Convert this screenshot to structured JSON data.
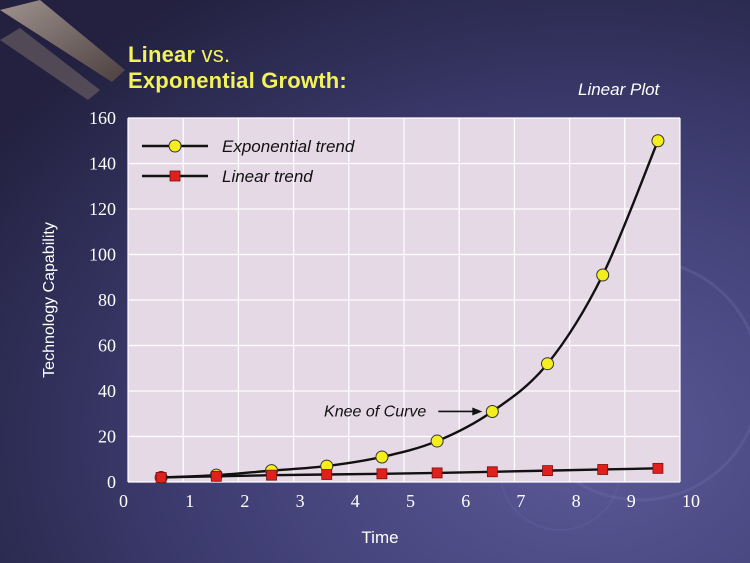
{
  "slide": {
    "title_bold_1": "Linear",
    "title_thin": " vs.",
    "title_bold_2": "Exponential Growth:",
    "subtitle": "Linear Plot"
  },
  "colors": {
    "background_dark": "#2a2850",
    "background_mid": "#4b4a86",
    "plot_bg": "#e6d9e6",
    "grid": "#ffffff",
    "title": "#f2f25a",
    "exp_marker": "#f5ee1e",
    "lin_marker": "#e0201c",
    "curve": "#111111"
  },
  "chart_data": {
    "type": "line",
    "ylabel": "Technology Capability",
    "xlabel": "Time",
    "xlim": [
      0,
      10
    ],
    "ylim": [
      0,
      160
    ],
    "x_ticks": [
      0,
      1,
      2,
      3,
      4,
      5,
      6,
      7,
      8,
      9,
      10
    ],
    "y_ticks": [
      0,
      20,
      40,
      60,
      80,
      100,
      120,
      140,
      160
    ],
    "grid": true,
    "legend": "top-left",
    "series": [
      {
        "name": "Exponential trend",
        "marker": "circle",
        "x": [
          0.6,
          1.6,
          2.6,
          3.6,
          4.6,
          5.6,
          6.6,
          7.6,
          8.6,
          9.6
        ],
        "values": [
          2,
          3,
          5,
          7,
          11,
          18,
          31,
          52,
          91,
          150
        ]
      },
      {
        "name": "Linear trend",
        "marker": "square",
        "x": [
          0.6,
          1.6,
          2.6,
          3.6,
          4.6,
          5.6,
          6.6,
          7.6,
          8.6,
          9.6
        ],
        "values": [
          2,
          2.5,
          3,
          3.3,
          3.6,
          4,
          4.5,
          5,
          5.5,
          6
        ]
      }
    ],
    "annotation": {
      "text": "Knee of Curve",
      "x": 6.6,
      "y": 31
    }
  }
}
